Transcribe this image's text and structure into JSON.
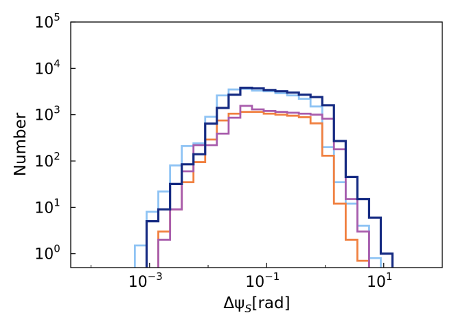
{
  "chart_data": {
    "type": "histogram",
    "title": "",
    "xlabel": "Δψ_S[rad]",
    "ylabel": "Number",
    "xscale": "log",
    "yscale": "log",
    "xlim": [
      4.5e-05,
      100
    ],
    "ylim": [
      0.5,
      100000
    ],
    "grid": false,
    "legend": "none",
    "x_ticks": [
      {
        "base": "10",
        "exp": "−3",
        "value": 0.001
      },
      {
        "base": "10",
        "exp": "−1",
        "value": 0.1
      },
      {
        "base": "10",
        "exp": "1",
        "value": 10
      }
    ],
    "y_ticks": [
      {
        "base": "10",
        "exp": "0",
        "value": 1
      },
      {
        "base": "10",
        "exp": "1",
        "value": 10
      },
      {
        "base": "10",
        "exp": "2",
        "value": 100
      },
      {
        "base": "10",
        "exp": "3",
        "value": 1000
      },
      {
        "base": "10",
        "exp": "4",
        "value": 10000
      },
      {
        "base": "10",
        "exp": "5",
        "value": 100000
      }
    ],
    "bin_edges": [
      0.00056,
      0.00089,
      0.00141,
      0.00224,
      0.00355,
      0.00562,
      0.00891,
      0.0141,
      0.0224,
      0.0355,
      0.0562,
      0.0891,
      0.141,
      0.224,
      0.355,
      0.562,
      0.891,
      1.41,
      2.24,
      3.55,
      5.62,
      8.91,
      14.1,
      22.4,
      35.5,
      56.2
    ],
    "series": [
      {
        "name": "series-light-blue",
        "color": "#8EC3F4",
        "values": [
          1.5,
          8,
          22,
          80,
          210,
          240,
          900,
          2600,
          3500,
          3600,
          3300,
          3200,
          2900,
          2600,
          2200,
          1500,
          200,
          35,
          12,
          4,
          0.8,
          0.3,
          0.3,
          0.3,
          0.3
        ]
      },
      {
        "name": "series-orange",
        "color": "#F08040",
        "values": [
          0.3,
          0.3,
          3,
          9,
          35,
          95,
          290,
          750,
          1050,
          1150,
          1150,
          1050,
          1000,
          950,
          880,
          650,
          130,
          12,
          2,
          0.7,
          0.3,
          0.3,
          0.3,
          0.3,
          0.3
        ]
      },
      {
        "name": "series-purple",
        "color": "#A85CAC",
        "values": [
          0.3,
          0.3,
          2,
          9,
          60,
          220,
          220,
          390,
          860,
          1550,
          1300,
          1200,
          1150,
          1100,
          1050,
          1000,
          820,
          180,
          15,
          3,
          0.3,
          0.3,
          0.3,
          0.3,
          0.3
        ]
      },
      {
        "name": "series-navy",
        "color": "#152A82",
        "values": [
          0.3,
          5,
          9,
          32,
          85,
          140,
          640,
          1400,
          2700,
          3800,
          3700,
          3400,
          3200,
          3000,
          2700,
          2400,
          1600,
          270,
          45,
          15,
          6,
          1,
          0.3,
          0.3,
          0.3
        ]
      }
    ]
  }
}
